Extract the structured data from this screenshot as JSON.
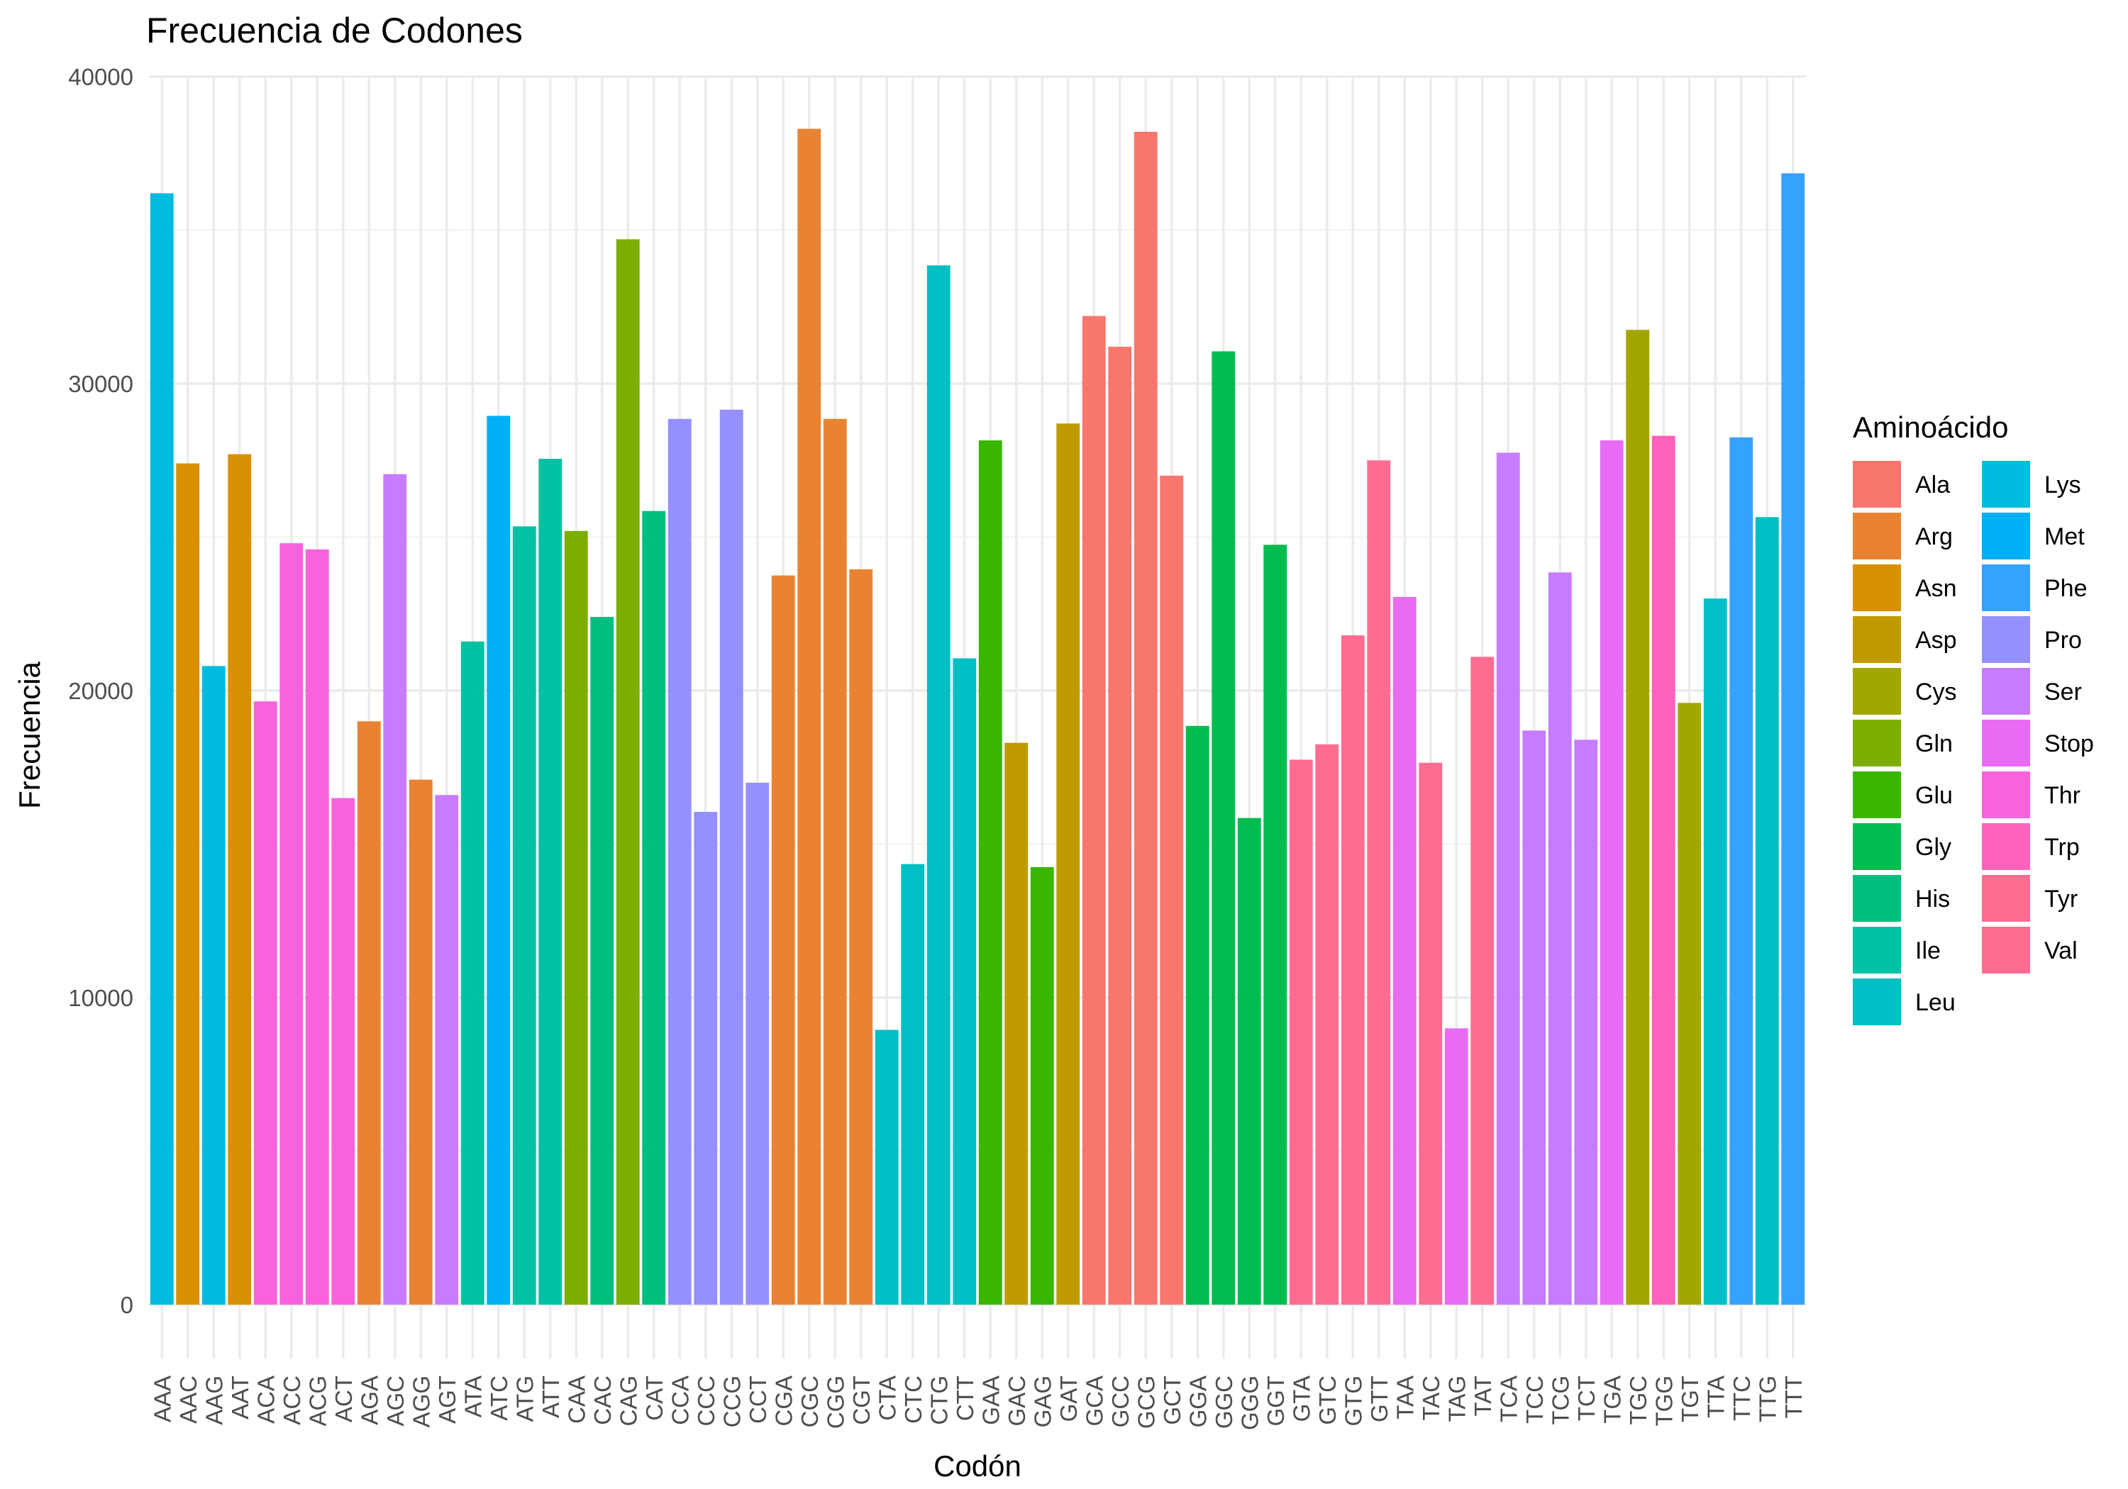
{
  "chart_data": {
    "type": "bar",
    "title": "Frecuencia de Codones",
    "xlabel": "Codón",
    "ylabel": "Frecuencia",
    "ylim": [
      0,
      40000
    ],
    "yticks": [
      0,
      10000,
      20000,
      30000,
      40000
    ],
    "yticklabels": [
      "0",
      "10000",
      "20000",
      "30000",
      "40000"
    ],
    "grid": true,
    "legend": {
      "title": "Aminoácido",
      "position": "right"
    },
    "categories": [
      "AAA",
      "AAC",
      "AAG",
      "AAT",
      "ACA",
      "ACC",
      "ACG",
      "ACT",
      "AGA",
      "AGC",
      "AGG",
      "AGT",
      "ATA",
      "ATC",
      "ATG",
      "ATT",
      "CAA",
      "CAC",
      "CAG",
      "CAT",
      "CCA",
      "CCC",
      "CCG",
      "CCT",
      "CGA",
      "CGC",
      "CGG",
      "CGT",
      "CTA",
      "CTC",
      "CTG",
      "CTT",
      "GAA",
      "GAC",
      "GAG",
      "GAT",
      "GCA",
      "GCC",
      "GCG",
      "GCT",
      "GGA",
      "GGC",
      "GGG",
      "GGT",
      "GTA",
      "GTC",
      "GTG",
      "GTT",
      "TAA",
      "TAC",
      "TAG",
      "TAT",
      "TCA",
      "TCC",
      "TCG",
      "TCT",
      "TGA",
      "TGC",
      "TGG",
      "TGT",
      "TTA",
      "TTC",
      "TTG",
      "TTT"
    ],
    "values": [
      36200,
      27400,
      20800,
      27700,
      19650,
      24800,
      24600,
      16500,
      19000,
      27050,
      17100,
      16600,
      21600,
      28950,
      25350,
      27550,
      25200,
      22400,
      34700,
      25850,
      28850,
      16050,
      29150,
      17000,
      23750,
      38300,
      28850,
      23950,
      8950,
      14350,
      33850,
      21050,
      28150,
      18300,
      14250,
      28700,
      32200,
      31200,
      38200,
      27000,
      18850,
      31050,
      15850,
      24750,
      17750,
      18250,
      21800,
      27500,
      23050,
      17650,
      9000,
      21100,
      27750,
      18700,
      23850,
      18400,
      28150,
      31750,
      28300,
      19600,
      23000,
      28250,
      25650,
      36850
    ],
    "amino_acids": [
      "Lys",
      "Asn",
      "Lys",
      "Asn",
      "Thr",
      "Thr",
      "Thr",
      "Thr",
      "Arg",
      "Ser",
      "Arg",
      "Ser",
      "Ile",
      "Met",
      "Ile",
      "Ile",
      "Gln",
      "His",
      "Gln",
      "His",
      "Pro",
      "Pro",
      "Pro",
      "Pro",
      "Arg",
      "Arg",
      "Arg",
      "Arg",
      "Leu",
      "Leu",
      "Leu",
      "Leu",
      "Glu",
      "Asp",
      "Glu",
      "Asp",
      "Ala",
      "Ala",
      "Ala",
      "Ala",
      "Gly",
      "Gly",
      "Gly",
      "Gly",
      "Val",
      "Val",
      "Val",
      "Val",
      "Stop",
      "Tyr",
      "Stop",
      "Tyr",
      "Ser",
      "Ser",
      "Ser",
      "Ser",
      "Stop",
      "Cys",
      "Trp",
      "Cys",
      "Leu",
      "Phe",
      "Leu",
      "Phe"
    ],
    "legend_entries": [
      {
        "name": "Ala",
        "color": "#F8766D"
      },
      {
        "name": "Arg",
        "color": "#EA8331"
      },
      {
        "name": "Asn",
        "color": "#D89000"
      },
      {
        "name": "Asp",
        "color": "#C09B00"
      },
      {
        "name": "Cys",
        "color": "#A3A500"
      },
      {
        "name": "Gln",
        "color": "#7CAE00"
      },
      {
        "name": "Glu",
        "color": "#39B600"
      },
      {
        "name": "Gly",
        "color": "#00BB4E"
      },
      {
        "name": "His",
        "color": "#00BF7D"
      },
      {
        "name": "Ile",
        "color": "#00C1A3"
      },
      {
        "name": "Leu",
        "color": "#00BFC4"
      },
      {
        "name": "Lys",
        "color": "#00BAE0"
      },
      {
        "name": "Met",
        "color": "#00B0F6"
      },
      {
        "name": "Phe",
        "color": "#35A2FF"
      },
      {
        "name": "Pro",
        "color": "#9590FF"
      },
      {
        "name": "Ser",
        "color": "#C77CFF"
      },
      {
        "name": "Stop",
        "color": "#E76BF3"
      },
      {
        "name": "Thr",
        "color": "#FA62DB"
      },
      {
        "name": "Trp",
        "color": "#FF62BC"
      },
      {
        "name": "Tyr",
        "color": "#FF6C91"
      },
      {
        "name": "Val",
        "color": "#FF6C91"
      }
    ]
  }
}
